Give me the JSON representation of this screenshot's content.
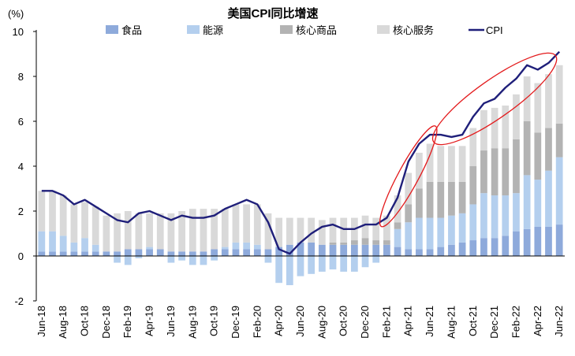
{
  "chart_data": {
    "type": "bar",
    "title": "美国CPI同比增速",
    "ylabel": "(%)",
    "xlabel": "",
    "ylim": [
      -2,
      10
    ],
    "yticks": [
      -2,
      0,
      2,
      4,
      6,
      8,
      10
    ],
    "grid": false,
    "legend_position": "top",
    "colors": {
      "food": "#8eaadb",
      "energy": "#b4cfee",
      "core_goods": "#b3b3b3",
      "core_services": "#d9d9d9",
      "cpi": "#1f1f7a",
      "annotation": "#e31a1c"
    },
    "x": [
      "Jun-18",
      "Jul-18",
      "Aug-18",
      "Sep-18",
      "Oct-18",
      "Nov-18",
      "Dec-18",
      "Jan-19",
      "Feb-19",
      "Mar-19",
      "Apr-19",
      "May-19",
      "Jun-19",
      "Jul-19",
      "Aug-19",
      "Sep-19",
      "Oct-19",
      "Nov-19",
      "Dec-19",
      "Jan-20",
      "Feb-20",
      "Mar-20",
      "Apr-20",
      "May-20",
      "Jun-20",
      "Jul-20",
      "Aug-20",
      "Sep-20",
      "Oct-20",
      "Nov-20",
      "Dec-20",
      "Jan-21",
      "Feb-21",
      "Mar-21",
      "Apr-21",
      "May-21",
      "Jun-21",
      "Jul-21",
      "Aug-21",
      "Sep-21",
      "Oct-21",
      "Nov-21",
      "Dec-21",
      "Jan-22",
      "Feb-22",
      "Mar-22",
      "Apr-22",
      "May-22",
      "Jun-22"
    ],
    "tick_labels": [
      "Jun-18",
      "Aug-18",
      "Oct-18",
      "Dec-18",
      "Feb-19",
      "Apr-19",
      "Jun-19",
      "Aug-19",
      "Oct-19",
      "Dec-19",
      "Feb-20",
      "Apr-20",
      "Jun-20",
      "Aug-20",
      "Oct-20",
      "Dec-20",
      "Feb-21",
      "Apr-21",
      "Jun-21",
      "Aug-21",
      "Oct-21",
      "Dec-21",
      "Feb-22",
      "Apr-22",
      "Jun-22"
    ],
    "series": [
      {
        "name": "食品",
        "type": "bar",
        "key": "food",
        "values": [
          0.2,
          0.2,
          0.2,
          0.2,
          0.2,
          0.2,
          0.2,
          0.2,
          0.3,
          0.3,
          0.3,
          0.3,
          0.2,
          0.2,
          0.2,
          0.2,
          0.3,
          0.3,
          0.3,
          0.3,
          0.3,
          0.3,
          0.4,
          0.5,
          0.6,
          0.6,
          0.5,
          0.5,
          0.5,
          0.5,
          0.5,
          0.5,
          0.5,
          0.4,
          0.3,
          0.3,
          0.3,
          0.4,
          0.5,
          0.6,
          0.7,
          0.8,
          0.8,
          0.9,
          1.1,
          1.2,
          1.3,
          1.3,
          1.4
        ]
      },
      {
        "name": "能源",
        "type": "bar",
        "key": "energy",
        "values": [
          0.9,
          0.9,
          0.7,
          0.4,
          0.6,
          0.3,
          0.0,
          -0.3,
          -0.4,
          -0.1,
          0.1,
          0.0,
          -0.3,
          -0.2,
          -0.4,
          -0.4,
          -0.2,
          0.1,
          0.3,
          0.3,
          0.2,
          -0.3,
          -1.2,
          -1.3,
          -0.9,
          -0.8,
          -0.7,
          -0.6,
          -0.7,
          -0.7,
          -0.5,
          -0.3,
          0.0,
          0.8,
          1.2,
          1.4,
          1.4,
          1.3,
          1.3,
          1.3,
          1.6,
          2.0,
          1.9,
          1.8,
          1.7,
          2.4,
          2.1,
          2.5,
          3.0
        ]
      },
      {
        "name": "核心商品",
        "type": "bar",
        "key": "core_goods",
        "values": [
          0.0,
          0.0,
          0.0,
          0.0,
          0.0,
          0.0,
          0.0,
          0.0,
          0.0,
          0.0,
          0.0,
          0.0,
          0.0,
          0.0,
          0.0,
          0.0,
          0.0,
          0.0,
          0.0,
          0.0,
          0.0,
          0.0,
          0.0,
          0.0,
          0.0,
          0.0,
          0.0,
          0.1,
          0.1,
          0.2,
          0.3,
          0.2,
          0.2,
          0.3,
          0.8,
          1.3,
          1.6,
          1.6,
          1.5,
          1.4,
          1.7,
          1.9,
          2.1,
          2.1,
          2.4,
          2.4,
          2.1,
          1.9,
          1.5
        ]
      },
      {
        "name": "核心服务",
        "type": "bar",
        "key": "core_services",
        "values": [
          1.8,
          1.8,
          1.8,
          1.7,
          1.6,
          1.7,
          1.6,
          1.7,
          1.7,
          1.6,
          1.5,
          1.6,
          1.7,
          1.8,
          1.9,
          1.9,
          1.8,
          1.7,
          1.7,
          1.7,
          1.8,
          1.6,
          1.3,
          1.2,
          1.1,
          1.1,
          1.1,
          1.1,
          1.1,
          1.0,
          1.0,
          1.0,
          1.1,
          1.2,
          1.4,
          1.6,
          1.7,
          1.6,
          1.6,
          1.6,
          1.7,
          1.8,
          1.8,
          1.9,
          2.0,
          2.0,
          2.2,
          2.4,
          2.6
        ]
      },
      {
        "name": "CPI",
        "type": "line",
        "key": "cpi",
        "values": [
          2.9,
          2.9,
          2.7,
          2.3,
          2.5,
          2.2,
          1.9,
          1.6,
          1.5,
          1.9,
          2.0,
          1.8,
          1.6,
          1.8,
          1.7,
          1.7,
          1.8,
          2.1,
          2.3,
          2.5,
          2.3,
          1.5,
          0.3,
          0.1,
          0.6,
          1.0,
          1.3,
          1.4,
          1.2,
          1.2,
          1.4,
          1.4,
          1.7,
          2.6,
          4.2,
          5.0,
          5.4,
          5.4,
          5.3,
          5.4,
          6.2,
          6.8,
          7.0,
          7.5,
          7.9,
          8.5,
          8.3,
          8.6,
          9.1
        ]
      }
    ],
    "annotations": [
      {
        "type": "ellipse",
        "from": "Feb-21",
        "to": "Jun-21",
        "ylim": [
          1.5,
          5.6
        ]
      },
      {
        "type": "ellipse",
        "from": "Jul-21",
        "to": "May-22",
        "ylim": [
          5.2,
          8.8
        ]
      }
    ]
  }
}
